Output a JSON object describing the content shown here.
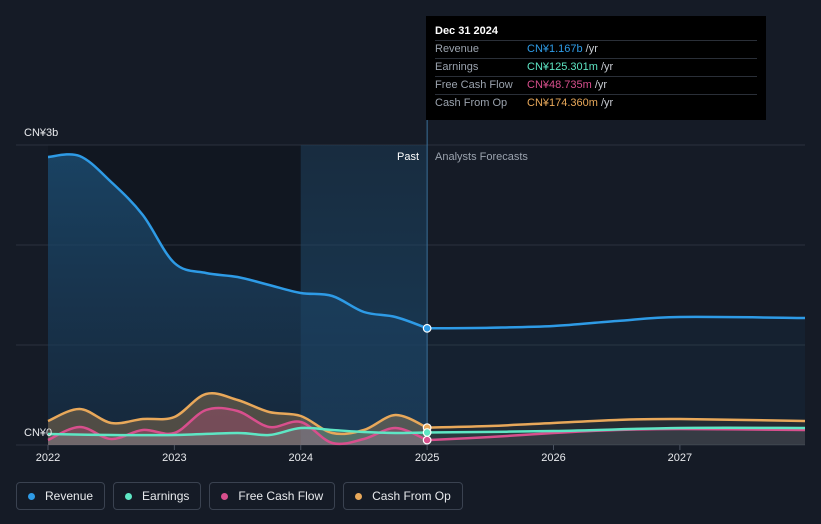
{
  "chart_data": {
    "type": "area",
    "y_axis": {
      "top_label": "CN¥3b",
      "bottom_label": "CN¥0",
      "ylim": [
        0,
        3.0
      ],
      "unit": "CN¥b"
    },
    "x_axis": {
      "ticks": [
        "2022",
        "2023",
        "2024",
        "2025",
        "2026",
        "2027"
      ],
      "xlim": [
        2022.0,
        2027.99
      ]
    },
    "regions": {
      "past_label": "Past",
      "forecast_label": "Analysts Forecasts",
      "split_x": 2025.0,
      "highlight_start": 2024.0
    },
    "series": [
      {
        "name": "Revenue",
        "color": "#2e9be6",
        "past": [
          [
            2022.0,
            2.88
          ],
          [
            2022.25,
            2.89
          ],
          [
            2022.5,
            2.63
          ],
          [
            2022.75,
            2.3
          ],
          [
            2023.0,
            1.82
          ],
          [
            2023.25,
            1.72
          ],
          [
            2023.5,
            1.68
          ],
          [
            2023.75,
            1.6
          ],
          [
            2024.0,
            1.52
          ],
          [
            2024.25,
            1.49
          ],
          [
            2024.5,
            1.33
          ],
          [
            2024.75,
            1.28
          ],
          [
            2025.0,
            1.167
          ]
        ],
        "forecast": [
          [
            2025.0,
            1.167
          ],
          [
            2025.5,
            1.173
          ],
          [
            2026.0,
            1.19
          ],
          [
            2026.5,
            1.24
          ],
          [
            2027.0,
            1.28
          ],
          [
            2027.99,
            1.27
          ]
        ]
      },
      {
        "name": "Earnings",
        "color": "#5ee6c4",
        "past": [
          [
            2022.0,
            0.11
          ],
          [
            2022.5,
            0.1
          ],
          [
            2023.0,
            0.1
          ],
          [
            2023.5,
            0.12
          ],
          [
            2023.75,
            0.1
          ],
          [
            2024.0,
            0.17
          ],
          [
            2024.25,
            0.15
          ],
          [
            2024.5,
            0.13
          ],
          [
            2024.75,
            0.12
          ],
          [
            2025.0,
            0.125
          ]
        ],
        "forecast": [
          [
            2025.0,
            0.125
          ],
          [
            2026.0,
            0.14
          ],
          [
            2027.0,
            0.17
          ],
          [
            2027.99,
            0.17
          ]
        ]
      },
      {
        "name": "Free Cash Flow",
        "color": "#d84f8d",
        "past": [
          [
            2022.0,
            0.05
          ],
          [
            2022.25,
            0.18
          ],
          [
            2022.5,
            0.06
          ],
          [
            2022.75,
            0.15
          ],
          [
            2023.0,
            0.12
          ],
          [
            2023.25,
            0.35
          ],
          [
            2023.5,
            0.34
          ],
          [
            2023.75,
            0.18
          ],
          [
            2024.0,
            0.23
          ],
          [
            2024.25,
            0.02
          ],
          [
            2024.5,
            0.06
          ],
          [
            2024.75,
            0.17
          ],
          [
            2025.0,
            0.049
          ]
        ],
        "forecast": [
          [
            2025.0,
            0.049
          ],
          [
            2025.5,
            0.08
          ],
          [
            2026.0,
            0.12
          ],
          [
            2026.5,
            0.15
          ],
          [
            2027.0,
            0.16
          ],
          [
            2027.99,
            0.15
          ]
        ]
      },
      {
        "name": "Cash From Op",
        "color": "#e8a85a",
        "past": [
          [
            2022.0,
            0.24
          ],
          [
            2022.25,
            0.36
          ],
          [
            2022.5,
            0.22
          ],
          [
            2022.75,
            0.26
          ],
          [
            2023.0,
            0.28
          ],
          [
            2023.25,
            0.51
          ],
          [
            2023.5,
            0.45
          ],
          [
            2023.75,
            0.33
          ],
          [
            2024.0,
            0.29
          ],
          [
            2024.25,
            0.12
          ],
          [
            2024.5,
            0.15
          ],
          [
            2024.75,
            0.3
          ],
          [
            2025.0,
            0.174
          ]
        ],
        "forecast": [
          [
            2025.0,
            0.174
          ],
          [
            2025.5,
            0.19
          ],
          [
            2026.0,
            0.22
          ],
          [
            2026.5,
            0.25
          ],
          [
            2027.0,
            0.26
          ],
          [
            2027.99,
            0.24
          ]
        ]
      }
    ]
  },
  "tooltip": {
    "date": "Dec 31 2024",
    "rows": [
      {
        "label": "Revenue",
        "value": "CN¥1.167b",
        "unit": "/yr",
        "color": "#2e9be6"
      },
      {
        "label": "Earnings",
        "value": "CN¥125.301m",
        "unit": "/yr",
        "color": "#5ee6c4"
      },
      {
        "label": "Free Cash Flow",
        "value": "CN¥48.735m",
        "unit": "/yr",
        "color": "#d84f8d"
      },
      {
        "label": "Cash From Op",
        "value": "CN¥174.360m",
        "unit": "/yr",
        "color": "#e8a85a"
      }
    ]
  },
  "legend": [
    {
      "label": "Revenue",
      "color": "#2e9be6"
    },
    {
      "label": "Earnings",
      "color": "#5ee6c4"
    },
    {
      "label": "Free Cash Flow",
      "color": "#d84f8d"
    },
    {
      "label": "Cash From Op",
      "color": "#e8a85a"
    }
  ]
}
